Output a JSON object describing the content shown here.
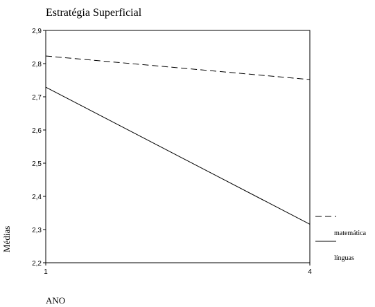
{
  "chart_data": {
    "type": "line",
    "title": "Estratégia Superficial",
    "xlabel": "ANO",
    "ylabel": "Médias",
    "x": [
      1,
      4
    ],
    "x_ticks": [
      "1",
      "4"
    ],
    "y_ticks": [
      "2,2",
      "2,3",
      "2,4",
      "2,5",
      "2,6",
      "2,7",
      "2,8",
      "2,9"
    ],
    "ylim": [
      2.2,
      2.9
    ],
    "grid": false,
    "legend_position": "right",
    "series": [
      {
        "name": "matemática",
        "values": [
          2.823,
          2.752
        ],
        "style": "dashed",
        "color": "#000000"
      },
      {
        "name": "línguas",
        "values": [
          2.729,
          2.316
        ],
        "style": "solid",
        "color": "#000000"
      }
    ]
  }
}
